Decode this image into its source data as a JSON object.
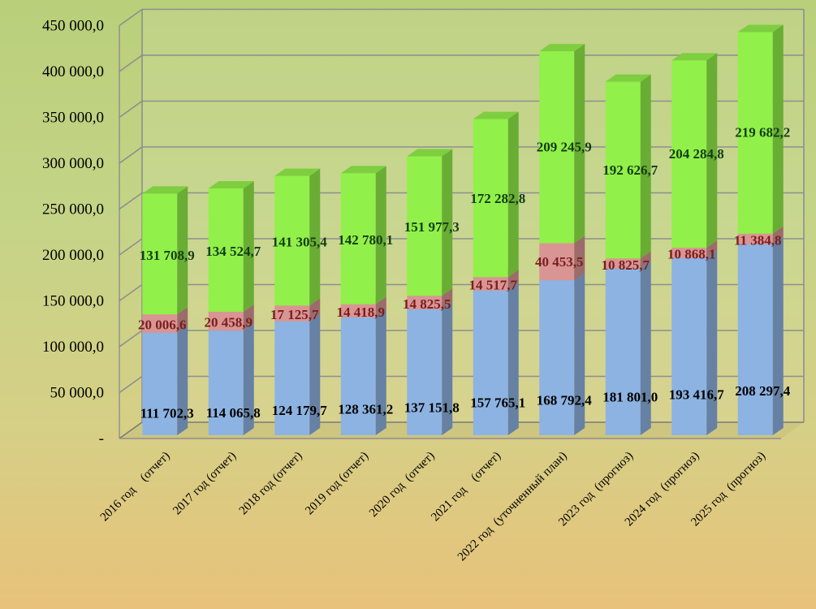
{
  "chart_data": {
    "type": "bar",
    "stacked": true,
    "three_d": true,
    "categories": [
      "2016 год    (отчет)",
      "2017 год (отчет)",
      "2018 год (отчет)",
      "2019 год (отчет)",
      "2020 год  (отчет)",
      "2021 год    (отчет)",
      "2022 год  (уточненный план)",
      "2023 год  (прогноз)",
      "2024 год  (прогноз)",
      "2025 год  (прогноз)"
    ],
    "series": [
      {
        "values": [
          111702.3,
          114065.8,
          124179.7,
          128361.2,
          137151.8,
          157765.1,
          168792.4,
          181801.0,
          193416.7,
          208297.4
        ],
        "labels": [
          "111 702,3",
          "114 065,8",
          "124 179,7",
          "128 361,2",
          "137 151,8",
          "157 765,1",
          "168 792,4",
          "181 801,0",
          "193 416,7",
          "208 297,4"
        ],
        "color": "#8db3e2",
        "label_color": "#000000"
      },
      {
        "values": [
          20006.6,
          20458.9,
          17125.7,
          14418.9,
          14825.5,
          14517.7,
          40453.5,
          10825.7,
          10868.1,
          11384.8
        ],
        "labels": [
          "20 006,6",
          "20 458,9",
          "17 125,7",
          "14 418,9",
          "14 825,5",
          "14 517,7",
          "40 453,5",
          "10 825,7",
          "10 868,1",
          "11 384,8"
        ],
        "color": "#d99594",
        "label_color": "#7a1e1e"
      },
      {
        "values": [
          131708.9,
          134524.7,
          141305.4,
          142780.1,
          151977.3,
          172282.8,
          209245.9,
          192626.7,
          204284.8,
          219682.2
        ],
        "labels": [
          "131 708,9",
          "134 524,7",
          "141 305,4",
          "142 780,1",
          "151 977,3",
          "172 282,8",
          "209 245,9",
          "192 626,7",
          "204 284,8",
          "219 682,2"
        ],
        "color": "#92f04a",
        "label_color": "#123d12"
      }
    ],
    "y_ticks": [
      "-",
      "50 000,0",
      "100 000,0",
      "150 000,0",
      "200 000,0",
      "250 000,0",
      "300 000,0",
      "350 000,0",
      "400 000,0",
      "450 000,0"
    ],
    "ylim": [
      0,
      450000
    ],
    "grid": true,
    "legend": "none",
    "title": "",
    "xlabel": "",
    "ylabel": ""
  }
}
